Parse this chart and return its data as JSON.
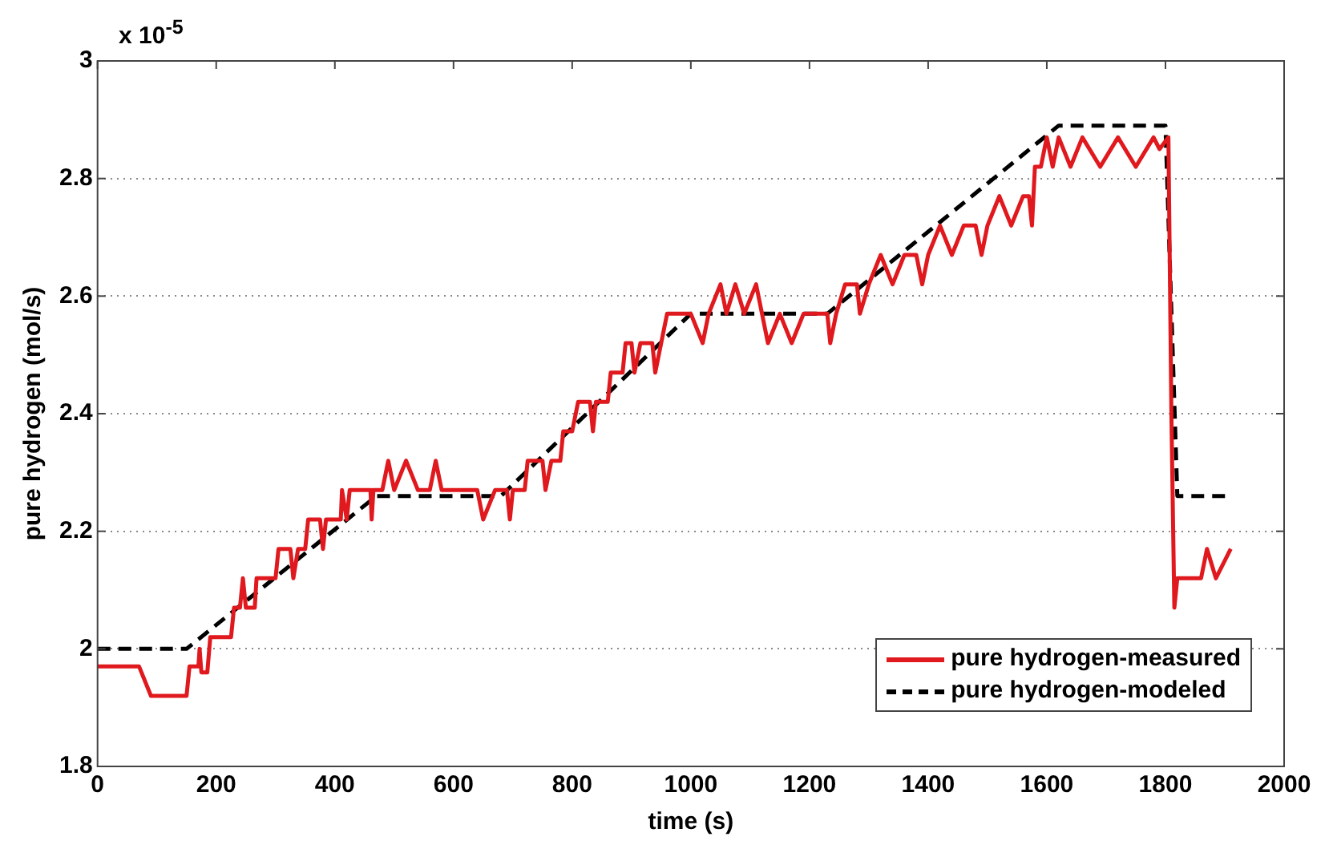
{
  "chart_data": {
    "type": "line",
    "xlabel": "time (s)",
    "ylabel": "pure hydrogen (mol/s)",
    "annotations": [
      "x 10$^{-5}$"
    ],
    "xlim": [
      0,
      2000
    ],
    "xticks": [
      0,
      200,
      400,
      600,
      800,
      1000,
      1200,
      1400,
      1600,
      1800,
      2000
    ],
    "ylim": [
      1.8,
      3
    ],
    "yticks": [
      1.8,
      2,
      2.2,
      2.4,
      2.6,
      2.8,
      3
    ],
    "grid": "y",
    "legend": "bottom right",
    "marker": "none",
    "series": [
      {
        "name": "pure hydrogen-measured",
        "color": "#e0191e",
        "line_style": "solid",
        "x": [
          0,
          70,
          90,
          150,
          155,
          170,
          172,
          175,
          185,
          190,
          225,
          230,
          240,
          245,
          250,
          265,
          268,
          300,
          305,
          325,
          330,
          338,
          350,
          355,
          375,
          380,
          385,
          410,
          412,
          420,
          425,
          460,
          462,
          465,
          480,
          490,
          500,
          520,
          540,
          560,
          570,
          580,
          640,
          650,
          670,
          690,
          695,
          700,
          720,
          725,
          750,
          755,
          765,
          780,
          785,
          800,
          810,
          830,
          835,
          840,
          860,
          865,
          885,
          890,
          900,
          905,
          915,
          935,
          940,
          950,
          960,
          990,
          1000,
          1020,
          1030,
          1050,
          1060,
          1075,
          1090,
          1110,
          1130,
          1150,
          1170,
          1190,
          1230,
          1235,
          1245,
          1260,
          1280,
          1285,
          1300,
          1320,
          1340,
          1360,
          1380,
          1390,
          1400,
          1420,
          1440,
          1460,
          1480,
          1490,
          1500,
          1520,
          1540,
          1560,
          1570,
          1575,
          1580,
          1590,
          1600,
          1610,
          1620,
          1640,
          1660,
          1690,
          1720,
          1750,
          1780,
          1790,
          1805,
          1810,
          1815,
          1820,
          1860,
          1870,
          1885,
          1910
        ],
        "values": [
          1.97,
          1.97,
          1.92,
          1.92,
          1.97,
          1.97,
          2.0,
          1.96,
          1.96,
          2.02,
          2.02,
          2.07,
          2.07,
          2.12,
          2.07,
          2.07,
          2.12,
          2.12,
          2.17,
          2.17,
          2.12,
          2.17,
          2.17,
          2.22,
          2.22,
          2.17,
          2.22,
          2.22,
          2.27,
          2.22,
          2.27,
          2.27,
          2.22,
          2.27,
          2.27,
          2.32,
          2.27,
          2.32,
          2.27,
          2.27,
          2.32,
          2.27,
          2.27,
          2.22,
          2.27,
          2.27,
          2.22,
          2.27,
          2.27,
          2.32,
          2.32,
          2.27,
          2.32,
          2.32,
          2.37,
          2.37,
          2.42,
          2.42,
          2.37,
          2.42,
          2.42,
          2.47,
          2.47,
          2.52,
          2.52,
          2.47,
          2.52,
          2.52,
          2.47,
          2.52,
          2.57,
          2.57,
          2.57,
          2.52,
          2.57,
          2.62,
          2.57,
          2.62,
          2.57,
          2.62,
          2.52,
          2.57,
          2.52,
          2.57,
          2.57,
          2.52,
          2.57,
          2.62,
          2.62,
          2.57,
          2.62,
          2.67,
          2.62,
          2.67,
          2.67,
          2.62,
          2.67,
          2.72,
          2.67,
          2.72,
          2.72,
          2.67,
          2.72,
          2.77,
          2.72,
          2.77,
          2.77,
          2.72,
          2.82,
          2.82,
          2.87,
          2.82,
          2.87,
          2.82,
          2.87,
          2.82,
          2.87,
          2.82,
          2.87,
          2.85,
          2.87,
          2.4,
          2.07,
          2.12,
          2.12,
          2.17,
          2.12,
          2.17
        ]
      },
      {
        "name": "pure hydrogen-modeled",
        "color": "#000000",
        "line_style": "dashed",
        "x": [
          0,
          150,
          470,
          680,
          1000,
          1230,
          1620,
          1800,
          1820,
          1910
        ],
        "values": [
          2.0,
          2.0,
          2.26,
          2.26,
          2.57,
          2.57,
          2.89,
          2.89,
          2.26,
          2.26
        ]
      }
    ]
  }
}
